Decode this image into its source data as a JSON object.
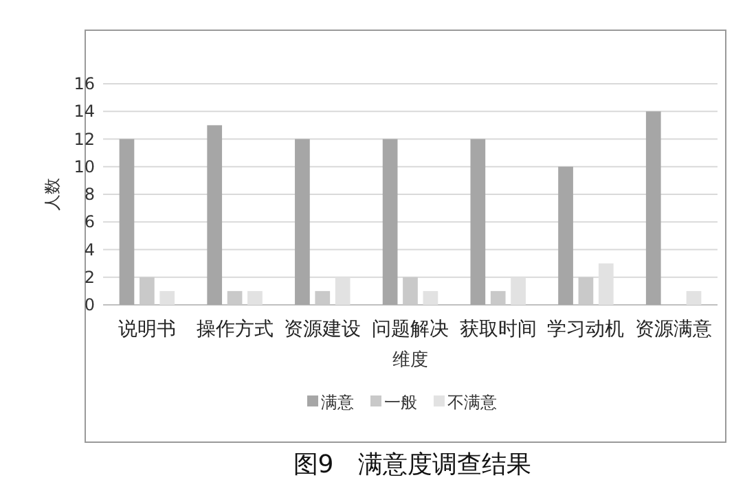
{
  "chart_data": {
    "type": "bar",
    "title": "图9　满意度调查结果",
    "xlabel": "维度",
    "ylabel": "人数",
    "categories": [
      "说明书",
      "操作方式",
      "资源建设",
      "问题解决",
      "获取时间",
      "学习动机",
      "资源满意"
    ],
    "series": [
      {
        "name": "满意",
        "color": "#a6a6a6",
        "values": [
          12,
          13,
          12,
          12,
          12,
          10,
          14
        ]
      },
      {
        "name": "一般",
        "color": "#c9c9c9",
        "values": [
          2,
          1,
          1,
          2,
          1,
          2,
          0
        ]
      },
      {
        "name": "不满意",
        "color": "#e2e2e2",
        "values": [
          1,
          1,
          2,
          1,
          2,
          3,
          1
        ]
      }
    ],
    "ylim": [
      0,
      16
    ],
    "yticks": [
      0,
      2,
      4,
      6,
      8,
      10,
      12,
      14,
      16
    ],
    "grid": "y",
    "legend": "bottom"
  }
}
